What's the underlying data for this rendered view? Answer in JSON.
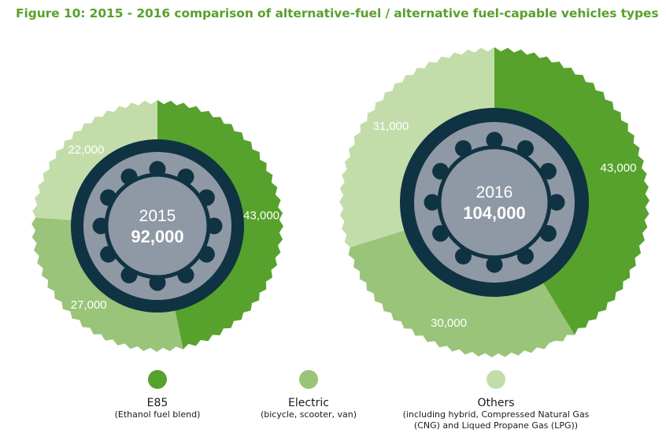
{
  "title": "Figure 10: 2015 - 2016 comparison of alternative-fuel / alternative fuel-capable vehicles types",
  "colors": {
    "e85": "#57a22c",
    "electric": "#99c47a",
    "others": "#c2ddaa",
    "hub": "#8f98a5",
    "ring": "#0f3342"
  },
  "chart_data": [
    {
      "type": "pie",
      "title": "2015",
      "total_label": "92,000",
      "categories": [
        "E85",
        "Electric",
        "Others"
      ],
      "values": [
        43000,
        27000,
        22000
      ],
      "value_labels": [
        "43,000",
        "27,000",
        "22,000"
      ]
    },
    {
      "type": "pie",
      "title": "2016",
      "total_label": "104,000",
      "categories": [
        "E85",
        "Electric",
        "Others"
      ],
      "values": [
        43000,
        30000,
        31000
      ],
      "value_labels": [
        "43,000",
        "30,000",
        "31,000"
      ]
    }
  ],
  "legend": [
    {
      "key": "e85",
      "label": "E85",
      "sub": "(Ethanol fuel blend)"
    },
    {
      "key": "electric",
      "label": "Electric",
      "sub": "(bicycle, scooter, van)"
    },
    {
      "key": "others",
      "label": "Others",
      "sub": "(including hybrid, Compressed Natural Gas (CNG) and Liqued Propane Gas (LPG))"
    }
  ]
}
